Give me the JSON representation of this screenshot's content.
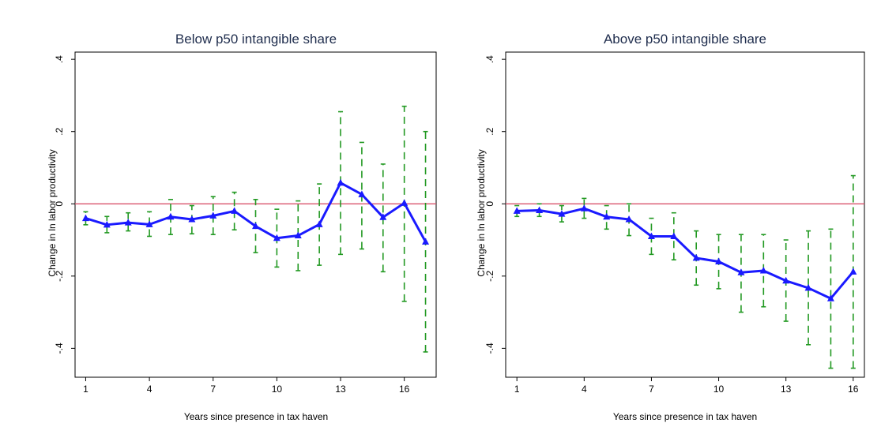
{
  "chart_data": [
    {
      "type": "line",
      "title": "Below p50 intangible share",
      "xlabel": "Years since presence in tax haven",
      "ylabel": "Change in ln labor productivity",
      "xlim": [
        0.5,
        17.5
      ],
      "ylim": [
        -0.48,
        0.42
      ],
      "xticks": [
        1,
        4,
        7,
        10,
        13,
        16
      ],
      "xtick_labels": [
        "1",
        "4",
        "7",
        "10",
        "13",
        "16"
      ],
      "yticks": [
        -0.4,
        -0.2,
        0,
        0.2,
        0.4
      ],
      "ytick_labels": [
        "-.4",
        "-.2",
        "0",
        ".2",
        ".4"
      ],
      "reference_line": 0,
      "colors": {
        "line": "#1a1aff",
        "ci": "#229922",
        "ref": "#d9536b",
        "frame": "#000000"
      },
      "grid": false,
      "legend": "none",
      "series": [
        {
          "x": [
            1,
            2,
            3,
            4,
            5,
            6,
            7,
            8,
            9,
            10,
            11,
            12,
            13,
            14,
            15,
            16,
            17
          ],
          "y": [
            -0.04,
            -0.058,
            -0.052,
            -0.057,
            -0.036,
            -0.043,
            -0.033,
            -0.02,
            -0.062,
            -0.095,
            -0.088,
            -0.057,
            0.058,
            0.026,
            -0.037,
            0.002,
            -0.105
          ],
          "ci_low": [
            -0.058,
            -0.08,
            -0.075,
            -0.09,
            -0.085,
            -0.083,
            -0.085,
            -0.072,
            -0.135,
            -0.175,
            -0.185,
            -0.17,
            -0.14,
            -0.125,
            -0.188,
            -0.27,
            -0.41
          ],
          "ci_high": [
            -0.022,
            -0.035,
            -0.025,
            -0.022,
            0.012,
            -0.005,
            0.02,
            0.032,
            0.012,
            -0.015,
            0.008,
            0.055,
            0.255,
            0.17,
            0.11,
            0.27,
            0.2
          ]
        }
      ]
    },
    {
      "type": "line",
      "title": "Above p50 intangible share",
      "xlabel": "Years since presence in tax haven",
      "ylabel": "Change in ln labor productivity",
      "xlim": [
        0.5,
        16.5
      ],
      "ylim": [
        -0.48,
        0.42
      ],
      "xticks": [
        1,
        4,
        7,
        10,
        13,
        16
      ],
      "xtick_labels": [
        "1",
        "4",
        "7",
        "10",
        "13",
        "16"
      ],
      "yticks": [
        -0.4,
        -0.2,
        0,
        0.2,
        0.4
      ],
      "ytick_labels": [
        "-.4",
        "-.2",
        "0",
        ".2",
        ".4"
      ],
      "reference_line": 0,
      "colors": {
        "line": "#1a1aff",
        "ci": "#229922",
        "ref": "#d9536b",
        "frame": "#000000"
      },
      "grid": false,
      "legend": "none",
      "series": [
        {
          "x": [
            1,
            2,
            3,
            4,
            5,
            6,
            7,
            8,
            9,
            10,
            11,
            12,
            13,
            14,
            15,
            16
          ],
          "y": [
            -0.02,
            -0.018,
            -0.028,
            -0.013,
            -0.036,
            -0.043,
            -0.09,
            -0.09,
            -0.15,
            -0.16,
            -0.19,
            -0.185,
            -0.213,
            -0.233,
            -0.262,
            -0.188
          ],
          "ci_low": [
            -0.035,
            -0.035,
            -0.05,
            -0.04,
            -0.07,
            -0.088,
            -0.14,
            -0.155,
            -0.225,
            -0.235,
            -0.3,
            -0.285,
            -0.325,
            -0.39,
            -0.455,
            -0.455
          ],
          "ci_high": [
            -0.005,
            0.0,
            -0.005,
            0.015,
            -0.005,
            0.0,
            -0.04,
            -0.025,
            -0.075,
            -0.085,
            -0.085,
            -0.085,
            -0.1,
            -0.075,
            -0.07,
            0.078
          ]
        }
      ]
    }
  ]
}
